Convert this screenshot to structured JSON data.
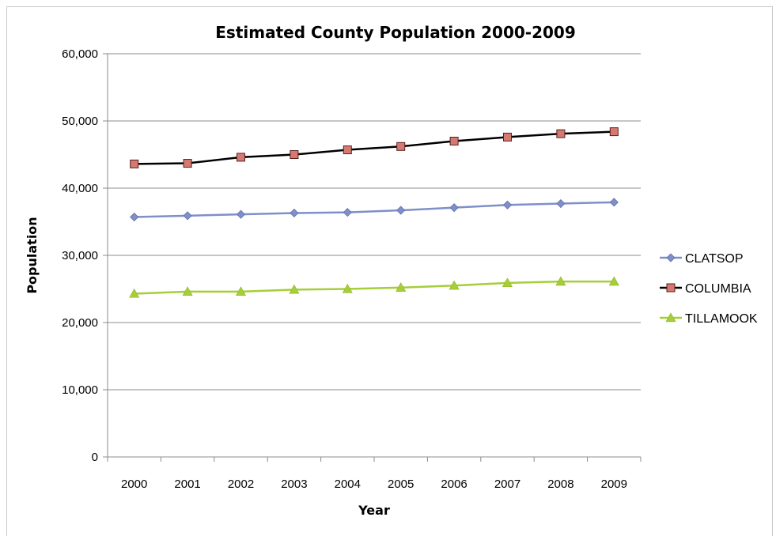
{
  "chart_data": {
    "type": "line",
    "title": "Estimated County Population 2000-2009",
    "xlabel": "Year",
    "ylabel": "Population",
    "categories": [
      "2000",
      "2001",
      "2002",
      "2003",
      "2004",
      "2005",
      "2006",
      "2007",
      "2008",
      "2009"
    ],
    "ylim": [
      0,
      60000
    ],
    "yticks": [
      "0",
      "10,000",
      "20,000",
      "30,000",
      "40,000",
      "50,000",
      "60,000"
    ],
    "ytick_values": [
      0,
      10000,
      20000,
      30000,
      40000,
      50000,
      60000
    ],
    "grid": true,
    "legend_position": "right",
    "series": [
      {
        "name": "CLATSOP",
        "color": "#7f8fc9",
        "marker": "diamond",
        "values": [
          35700,
          35900,
          36100,
          36300,
          36400,
          36700,
          37100,
          37500,
          37700,
          37900
        ]
      },
      {
        "name": "COLUMBIA",
        "color": "#000000",
        "marker_fill": "#d47a73",
        "marker": "square",
        "values": [
          43600,
          43700,
          44600,
          45000,
          45700,
          46200,
          47000,
          47600,
          48100,
          48400
        ]
      },
      {
        "name": "TILLAMOOK",
        "color": "#a6ce39",
        "marker": "triangle",
        "values": [
          24300,
          24600,
          24600,
          24900,
          25000,
          25200,
          25500,
          25900,
          26100,
          26100
        ]
      }
    ]
  }
}
